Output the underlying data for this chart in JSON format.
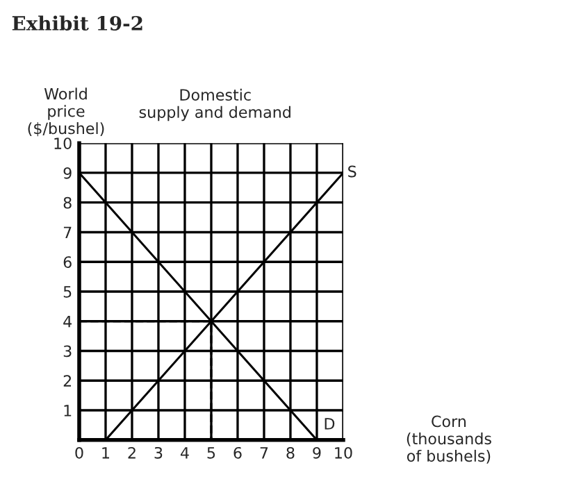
{
  "chart_data": {
    "type": "line",
    "title": "Exhibit 19-2",
    "subtitle": "Domestic\nsupply and demand",
    "ylabel": "World\nprice\n($/bushel)",
    "xlabel": "Corn\n(thousands\nof bushels)",
    "series": [
      {
        "x": [
          1,
          10
        ],
        "values": [
          0,
          9
        ],
        "color": "#000000"
      },
      {
        "x": [
          0,
          9
        ],
        "values": [
          9,
          0
        ],
        "color": "#000000"
      },
      {
        "x": [
          0,
          5,
          5
        ],
        "values": [
          4,
          4,
          0
        ],
        "color": "#000000",
        "line_style": "dashed"
      }
    ],
    "annotations": [
      {
        "text": "S",
        "x": 10,
        "y": 9
      },
      {
        "text": "D",
        "x": 9,
        "y": 0
      }
    ],
    "xlim": [
      0,
      10
    ],
    "ylim": [
      0,
      10
    ],
    "xticks": [
      0,
      1,
      2,
      3,
      4,
      5,
      6,
      7,
      8,
      9,
      10
    ],
    "yticks": [
      1,
      2,
      3,
      4,
      5,
      6,
      7,
      8,
      9,
      10
    ],
    "grid": true,
    "legend": false,
    "marker": "none",
    "line_style": "solid"
  }
}
